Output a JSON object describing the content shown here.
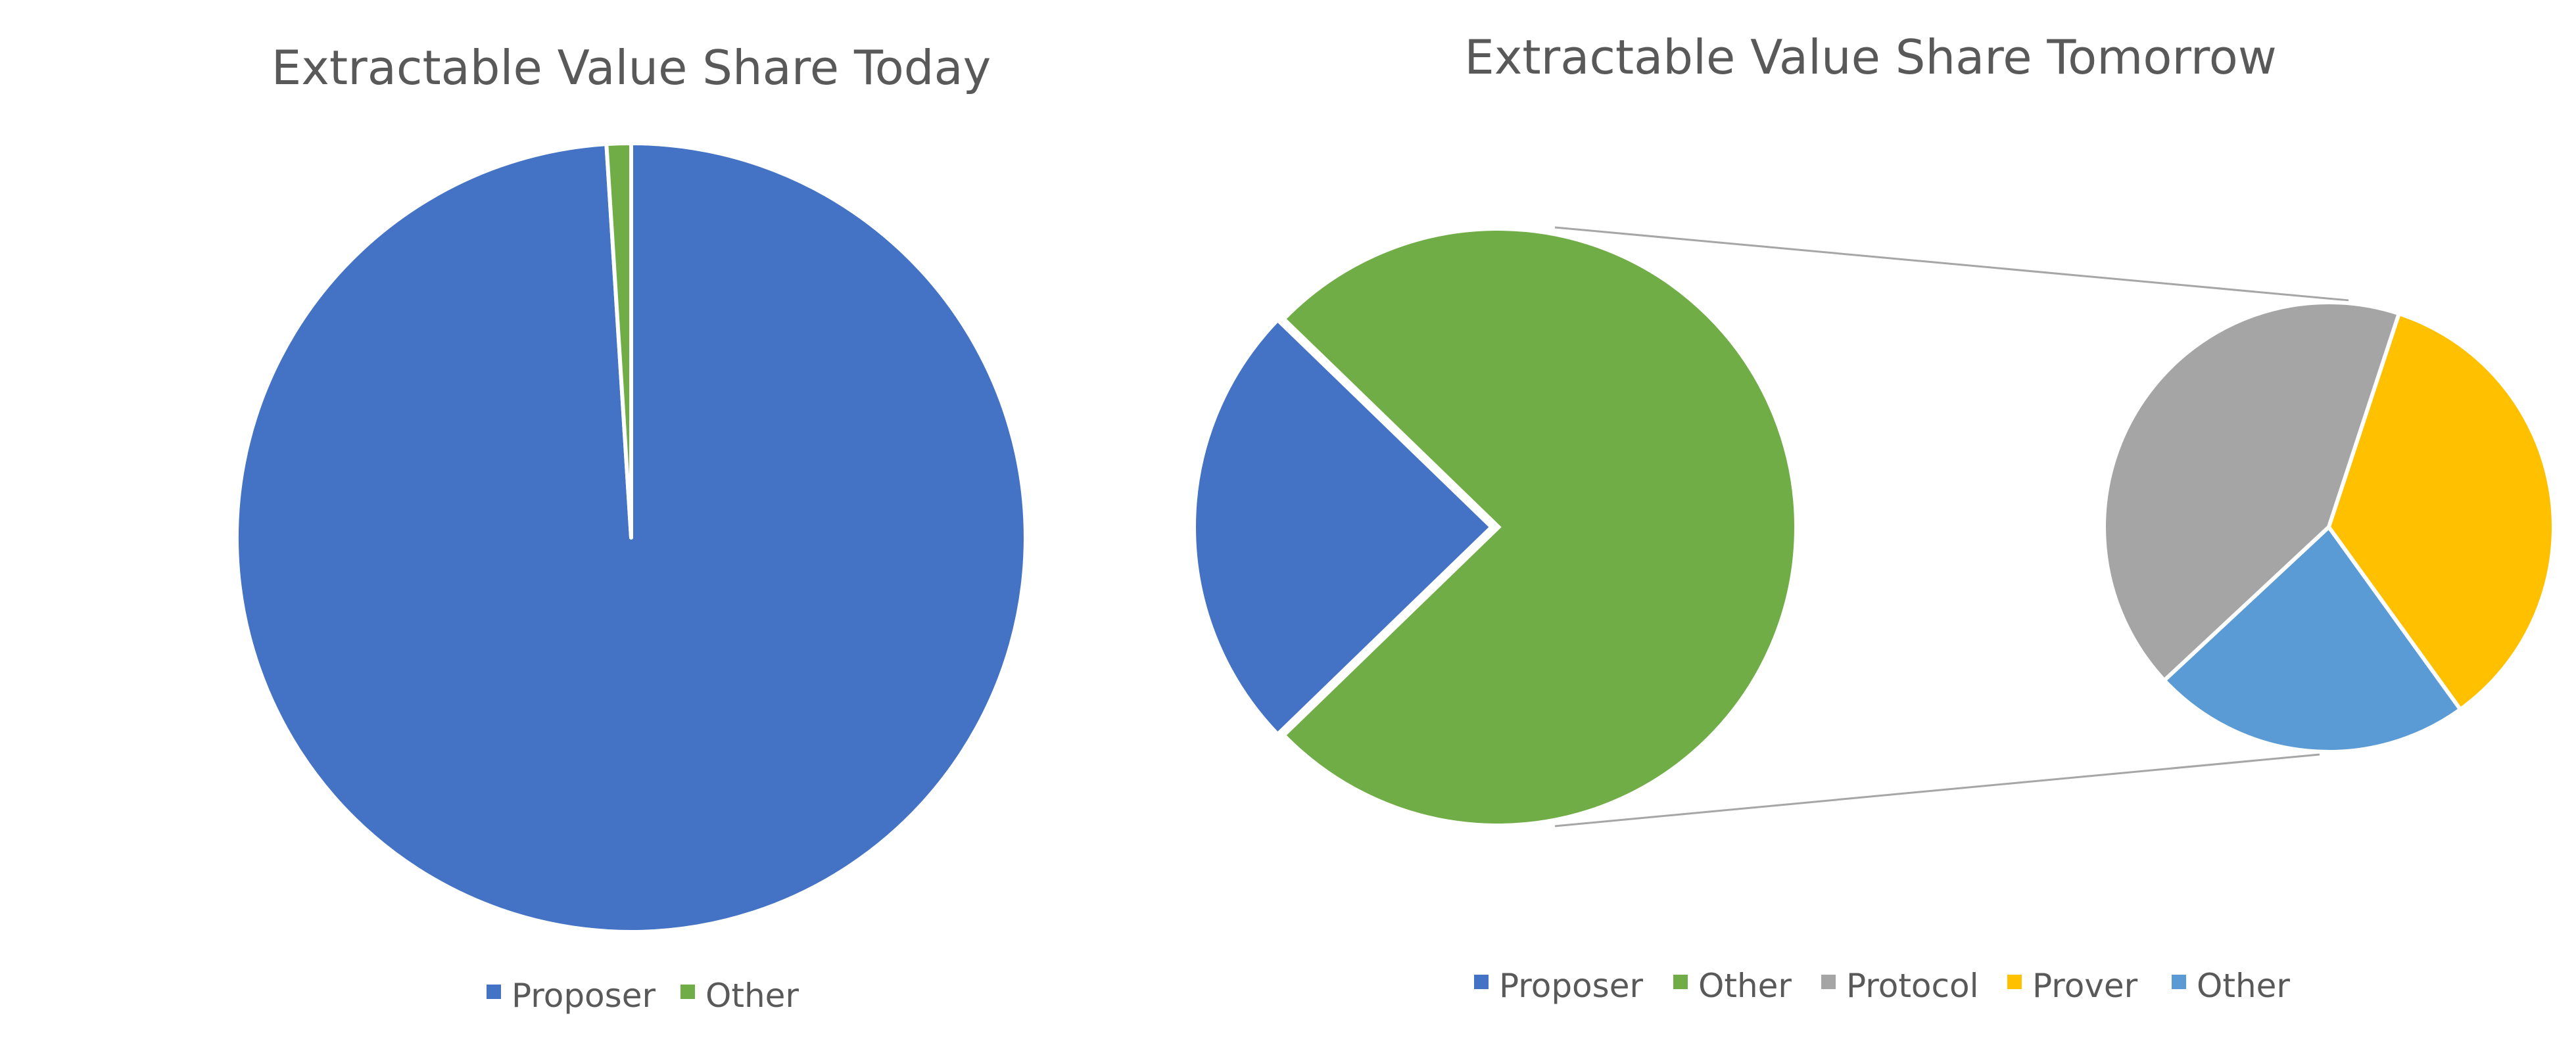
{
  "chart_data": [
    {
      "type": "pie",
      "title": "Extractable Value Share Today",
      "categories": [
        "Proposer",
        "Other"
      ],
      "values": [
        99,
        1
      ],
      "colors": [
        "#4472C4",
        "#70AD47"
      ],
      "legend": {
        "position": "bottom",
        "entries": [
          "Proposer",
          "Other"
        ]
      }
    },
    {
      "type": "pie",
      "subtype": "pie-of-pie",
      "title": "Extractable Value Share Tomorrow",
      "categories": [
        "Proposer",
        "Other"
      ],
      "values": [
        24.5,
        75.5
      ],
      "colors": [
        "#4472C4",
        "#70AD47"
      ],
      "exploded_category": "Other",
      "secondary": {
        "categories": [
          "Protocol",
          "Prover",
          "Other"
        ],
        "values": [
          42,
          35,
          23
        ],
        "colors": [
          "#A5A5A5",
          "#FFC000",
          "#5B9BD5"
        ]
      },
      "legend": {
        "position": "bottom",
        "entries": [
          "Proposer",
          "Other",
          "Protocol",
          "Prover",
          "Other"
        ]
      }
    }
  ]
}
